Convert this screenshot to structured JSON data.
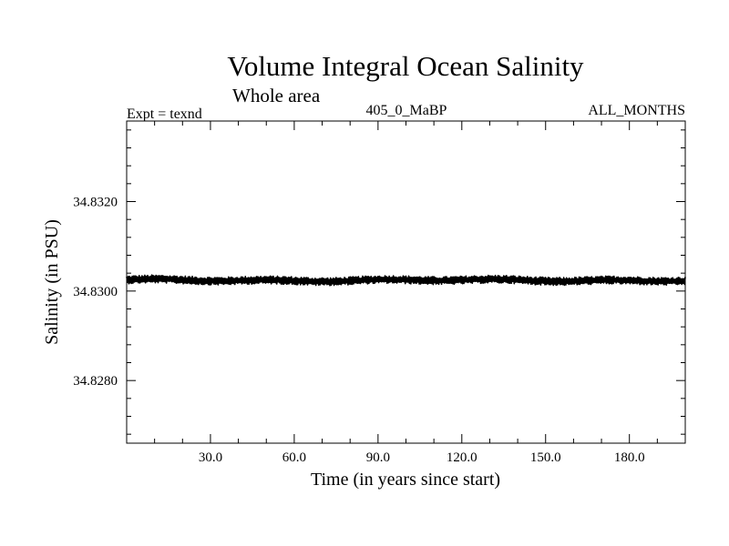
{
  "chart_data": {
    "type": "line",
    "title": "Volume Integral Ocean Salinity",
    "subtitle": "Whole area",
    "experiment": "Expt = texnd",
    "run_id": "405_0_MaBP",
    "period": "ALL_MONTHS",
    "xlabel": "Time (in years since start)",
    "ylabel": "Salinity (in PSU)",
    "xlim": [
      0,
      200
    ],
    "ylim": [
      34.8266,
      34.8338
    ],
    "x_ticks": [
      30,
      60,
      90,
      120,
      150,
      180
    ],
    "x_tick_labels": [
      "30.0",
      "60.0",
      "90.0",
      "120.0",
      "150.0",
      "180.0"
    ],
    "y_ticks": [
      34.828,
      34.83,
      34.832
    ],
    "y_tick_labels": [
      "34.8280",
      "34.8300",
      "34.8320"
    ],
    "grid": false,
    "series": [
      {
        "name": "Volume Integral Ocean Salinity",
        "color": "#000000",
        "x_start": 0,
        "x_step": 0.25,
        "baseline": 34.83024,
        "seasonal_amplitude": 9e-05,
        "decadal_variation": 5e-05,
        "min": 34.83,
        "max": 34.83055
      }
    ]
  }
}
